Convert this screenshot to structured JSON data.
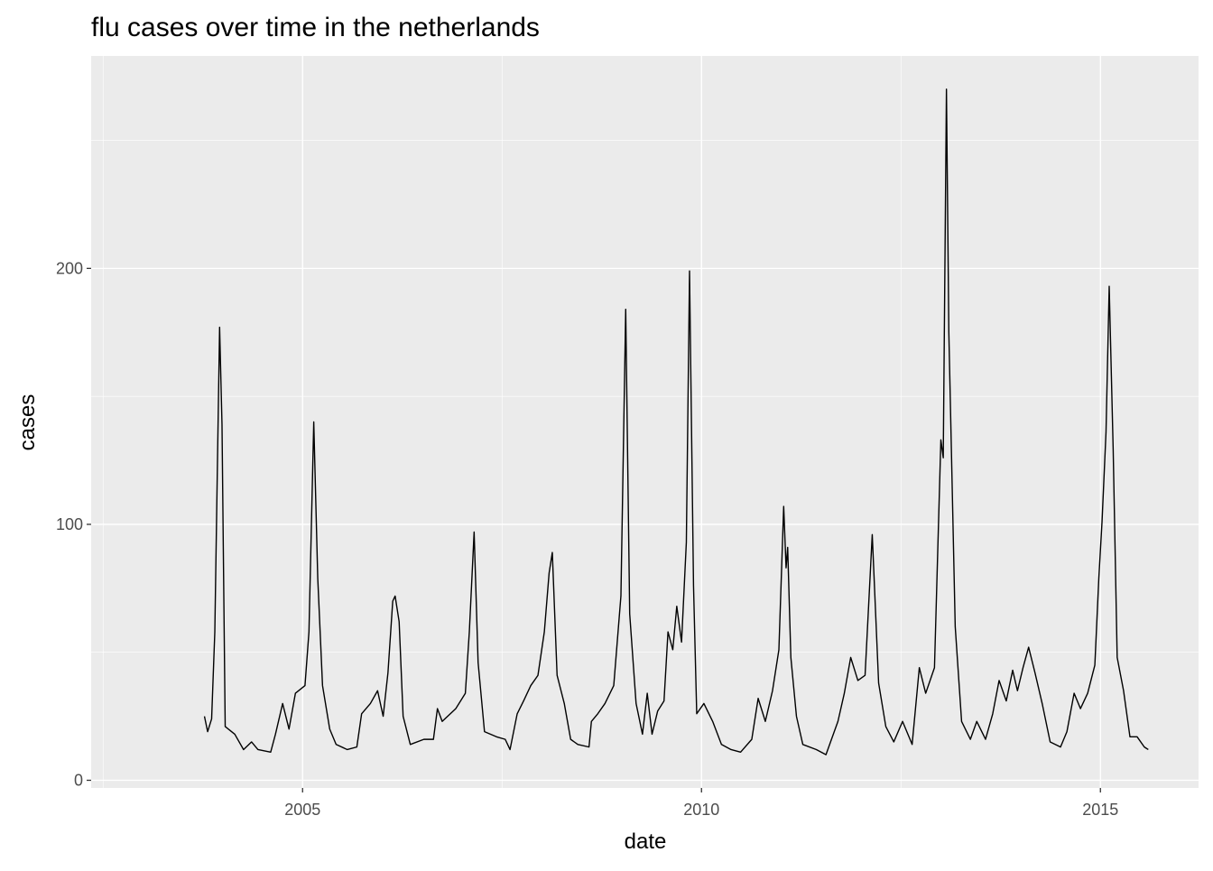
{
  "chart_data": {
    "type": "line",
    "title": "flu cases over time in the netherlands",
    "x_label": "date",
    "y_label": "cases",
    "x": [
      2003.77,
      2003.81,
      2003.86,
      2003.9,
      2003.93,
      2003.96,
      2003.99,
      2004.03,
      2004.15,
      2004.26,
      2004.36,
      2004.44,
      2004.6,
      2004.66,
      2004.75,
      2004.83,
      2004.91,
      2005.03,
      2005.08,
      2005.14,
      2005.19,
      2005.25,
      2005.34,
      2005.42,
      2005.56,
      2005.68,
      2005.74,
      2005.85,
      2005.94,
      2006.01,
      2006.07,
      2006.13,
      2006.16,
      2006.21,
      2006.26,
      2006.35,
      2006.52,
      2006.64,
      2006.69,
      2006.75,
      2006.92,
      2007.04,
      2007.09,
      2007.15,
      2007.2,
      2007.28,
      2007.43,
      2007.54,
      2007.6,
      2007.69,
      2007.77,
      2007.86,
      2007.95,
      2008.03,
      2008.09,
      2008.13,
      2008.19,
      2008.28,
      2008.36,
      2008.45,
      2008.59,
      2008.62,
      2008.7,
      2008.79,
      2008.9,
      2008.99,
      2009.05,
      2009.1,
      2009.18,
      2009.26,
      2009.32,
      2009.38,
      2009.45,
      2009.53,
      2009.58,
      2009.64,
      2009.69,
      2009.75,
      2009.81,
      2009.85,
      2009.9,
      2009.94,
      2010.03,
      2010.14,
      2010.25,
      2010.37,
      2010.49,
      2010.63,
      2010.71,
      2010.8,
      2010.89,
      2010.97,
      2011.03,
      2011.06,
      2011.08,
      2011.12,
      2011.19,
      2011.27,
      2011.44,
      2011.56,
      2011.71,
      2011.79,
      2011.87,
      2011.96,
      2012.05,
      2012.14,
      2012.22,
      2012.31,
      2012.41,
      2012.52,
      2012.64,
      2012.73,
      2012.81,
      2012.92,
      2013.0,
      2013.03,
      2013.07,
      2013.1,
      2013.18,
      2013.26,
      2013.37,
      2013.45,
      2013.56,
      2013.65,
      2013.73,
      2013.82,
      2013.9,
      2013.96,
      2014.03,
      2014.1,
      2014.18,
      2014.27,
      2014.37,
      2014.5,
      2014.58,
      2014.67,
      2014.75,
      2014.84,
      2014.93,
      2014.98,
      2015.02,
      2015.07,
      2015.11,
      2015.16,
      2015.21,
      2015.29,
      2015.37,
      2015.46,
      2015.55,
      2015.6
    ],
    "series": [
      {
        "name": "cases",
        "color": "#000000",
        "values": [
          25,
          19,
          24,
          58,
          118,
          177,
          139,
          21,
          18,
          12,
          15,
          12,
          11,
          18,
          30,
          20,
          34,
          37,
          58,
          140,
          79,
          37,
          20,
          14,
          12,
          13,
          26,
          30,
          35,
          25,
          42,
          70,
          72,
          62,
          25,
          14,
          16,
          16,
          28,
          23,
          28,
          34,
          58,
          97,
          46,
          19,
          17,
          16,
          12,
          26,
          31,
          37,
          41,
          58,
          81,
          89,
          41,
          30,
          16,
          14,
          13,
          23,
          26,
          30,
          37,
          72,
          184,
          65,
          30,
          18,
          34,
          18,
          27,
          31,
          58,
          51,
          68,
          54,
          93,
          199,
          76,
          26,
          30,
          23,
          14,
          12,
          11,
          16,
          32,
          23,
          35,
          51,
          107,
          83,
          91,
          48,
          25,
          14,
          12,
          10,
          23,
          34,
          48,
          39,
          41,
          96,
          38,
          21,
          15,
          23,
          14,
          44,
          34,
          44,
          133,
          126,
          270,
          175,
          60,
          23,
          16,
          23,
          16,
          26,
          39,
          31,
          43,
          35,
          44,
          52,
          42,
          30,
          15,
          13,
          19,
          34,
          28,
          34,
          45,
          79,
          101,
          136,
          193,
          129,
          48,
          35,
          17,
          17,
          13,
          12
        ]
      }
    ],
    "xlim": [
      2002.35,
      2016.23
    ],
    "xticks": [
      2005,
      2010,
      2015
    ],
    "ylim": [
      -3,
      283
    ],
    "yticks": [
      0,
      100,
      200
    ],
    "x_minor_grid": [
      2002.5,
      2007.5,
      2012.5
    ],
    "y_minor_grid": [
      50,
      150,
      250
    ],
    "grid": true
  }
}
